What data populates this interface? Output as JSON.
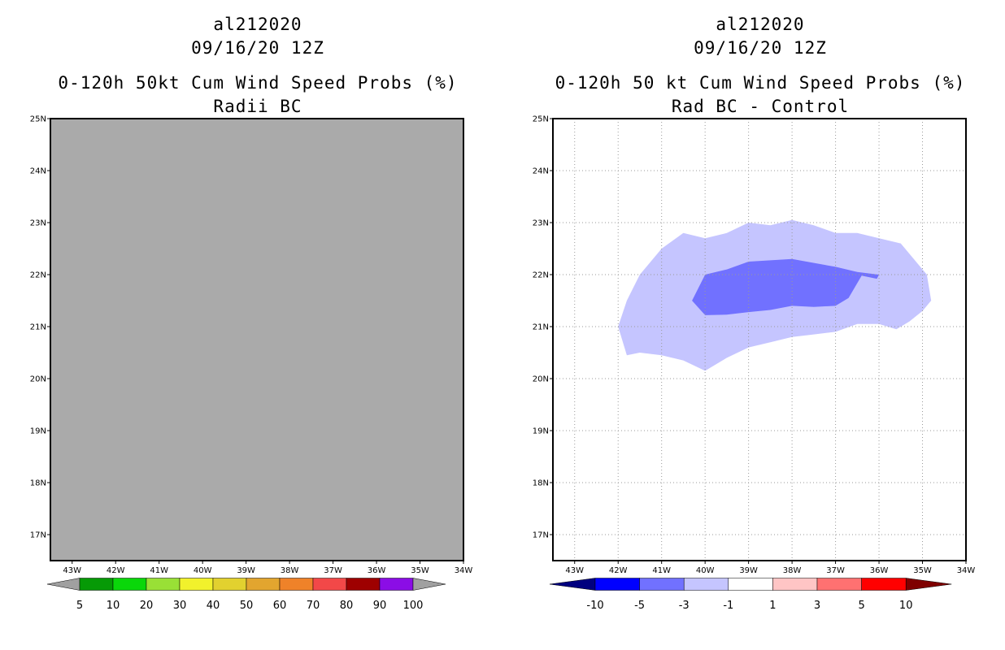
{
  "panels": [
    {
      "storm_id": "al212020",
      "datetime": "09/16/20 12Z",
      "title": "0-120h 50kt Cum Wind Speed Probs (%)",
      "subtitle": "Radii BC"
    },
    {
      "storm_id": "al212020",
      "datetime": "09/16/20 12Z",
      "title": "0-120h 50 kt Cum Wind Speed Probs (%)",
      "subtitle": "Rad BC - Control"
    }
  ],
  "chart_data": [
    {
      "type": "heatmap",
      "title": "0-120h 50kt Cum Wind Speed Probs (%)",
      "subtitle": "Radii BC",
      "xlim": [
        -43.5,
        -34
      ],
      "ylim": [
        16.5,
        25
      ],
      "x_ticks": [
        -43,
        -42,
        -41,
        -40,
        -39,
        -38,
        -37,
        -36,
        -35,
        -34
      ],
      "x_tick_labels": [
        "43W",
        "42W",
        "41W",
        "40W",
        "39W",
        "38W",
        "37W",
        "36W",
        "35W",
        "34W"
      ],
      "y_ticks": [
        17,
        18,
        19,
        20,
        21,
        22,
        23,
        24,
        25
      ],
      "y_tick_labels": [
        "17N",
        "18N",
        "19N",
        "20N",
        "21N",
        "22N",
        "23N",
        "24N",
        "25N"
      ],
      "grid": false,
      "fill_color": "#aaaaaa",
      "colorbar": {
        "labels": [
          "5",
          "10",
          "20",
          "30",
          "40",
          "50",
          "60",
          "70",
          "80",
          "90",
          "100"
        ],
        "colors": [
          "#069a06",
          "#0ad70a",
          "#99e036",
          "#f1f12c",
          "#e2d12f",
          "#e2a52f",
          "#ef8229",
          "#f24848",
          "#9e0000",
          "#8b0de6"
        ],
        "under_color": "#a0a0a0",
        "over_color": "#a0a0a0"
      }
    },
    {
      "type": "heatmap",
      "title": "0-120h 50 kt Cum Wind Speed Probs (%)",
      "subtitle": "Rad BC - Control",
      "xlim": [
        -43.5,
        -34
      ],
      "ylim": [
        16.5,
        25
      ],
      "x_ticks": [
        -43,
        -42,
        -41,
        -40,
        -39,
        -38,
        -37,
        -36,
        -35,
        -34
      ],
      "x_tick_labels": [
        "43W",
        "42W",
        "41W",
        "40W",
        "39W",
        "38W",
        "37W",
        "36W",
        "35W",
        "34W"
      ],
      "y_ticks": [
        17,
        18,
        19,
        20,
        21,
        22,
        23,
        24,
        25
      ],
      "y_tick_labels": [
        "17N",
        "18N",
        "19N",
        "20N",
        "21N",
        "22N",
        "23N",
        "24N",
        "25N"
      ],
      "grid": true,
      "contours": [
        {
          "level": "-3 to -1",
          "color": "#c5c5ff",
          "points": [
            [
              -42.0,
              21.0
            ],
            [
              -41.8,
              21.5
            ],
            [
              -41.5,
              22.0
            ],
            [
              -41.3,
              22.2
            ],
            [
              -41.0,
              22.5
            ],
            [
              -40.5,
              22.8
            ],
            [
              -40.0,
              22.7
            ],
            [
              -39.5,
              22.8
            ],
            [
              -39.0,
              23.0
            ],
            [
              -38.5,
              22.95
            ],
            [
              -38.0,
              23.05
            ],
            [
              -37.5,
              22.95
            ],
            [
              -37.0,
              22.8
            ],
            [
              -36.5,
              22.8
            ],
            [
              -36.0,
              22.7
            ],
            [
              -35.5,
              22.6
            ],
            [
              -35.2,
              22.3
            ],
            [
              -34.9,
              22.0
            ],
            [
              -34.8,
              21.5
            ],
            [
              -35.0,
              21.3
            ],
            [
              -35.3,
              21.1
            ],
            [
              -35.6,
              20.95
            ],
            [
              -36.0,
              21.05
            ],
            [
              -36.5,
              21.05
            ],
            [
              -37.0,
              20.9
            ],
            [
              -37.5,
              20.85
            ],
            [
              -38.0,
              20.8
            ],
            [
              -38.5,
              20.7
            ],
            [
              -39.0,
              20.6
            ],
            [
              -39.5,
              20.4
            ],
            [
              -40.0,
              20.15
            ],
            [
              -40.5,
              20.35
            ],
            [
              -41.0,
              20.45
            ],
            [
              -41.5,
              20.5
            ],
            [
              -41.8,
              20.45
            ],
            [
              -42.0,
              21.0
            ]
          ]
        },
        {
          "level": "-5 to -3",
          "color": "#7171ff",
          "points": [
            [
              -40.3,
              21.5
            ],
            [
              -40.0,
              22.0
            ],
            [
              -39.5,
              22.1
            ],
            [
              -39.0,
              22.25
            ],
            [
              -38.0,
              22.3
            ],
            [
              -37.0,
              22.15
            ],
            [
              -36.5,
              22.05
            ],
            [
              -36.2,
              22.02
            ],
            [
              -36.0,
              22.0
            ],
            [
              -36.05,
              21.92
            ],
            [
              -36.4,
              21.98
            ],
            [
              -36.7,
              21.55
            ],
            [
              -37.0,
              21.4
            ],
            [
              -37.5,
              21.38
            ],
            [
              -38.0,
              21.4
            ],
            [
              -38.5,
              21.32
            ],
            [
              -39.0,
              21.28
            ],
            [
              -39.5,
              21.23
            ],
            [
              -40.0,
              21.22
            ],
            [
              -40.3,
              21.5
            ]
          ]
        }
      ],
      "colorbar": {
        "labels": [
          "-10",
          "-5",
          "-3",
          "-1",
          "1",
          "3",
          "5",
          "10"
        ],
        "colors": [
          "#0000ff",
          "#7171ff",
          "#c5c5ff",
          "#ffffff",
          "#ffc5c5",
          "#ff7171",
          "#ff0000"
        ],
        "under_color": "#00007f",
        "over_color": "#7f0000"
      }
    }
  ]
}
